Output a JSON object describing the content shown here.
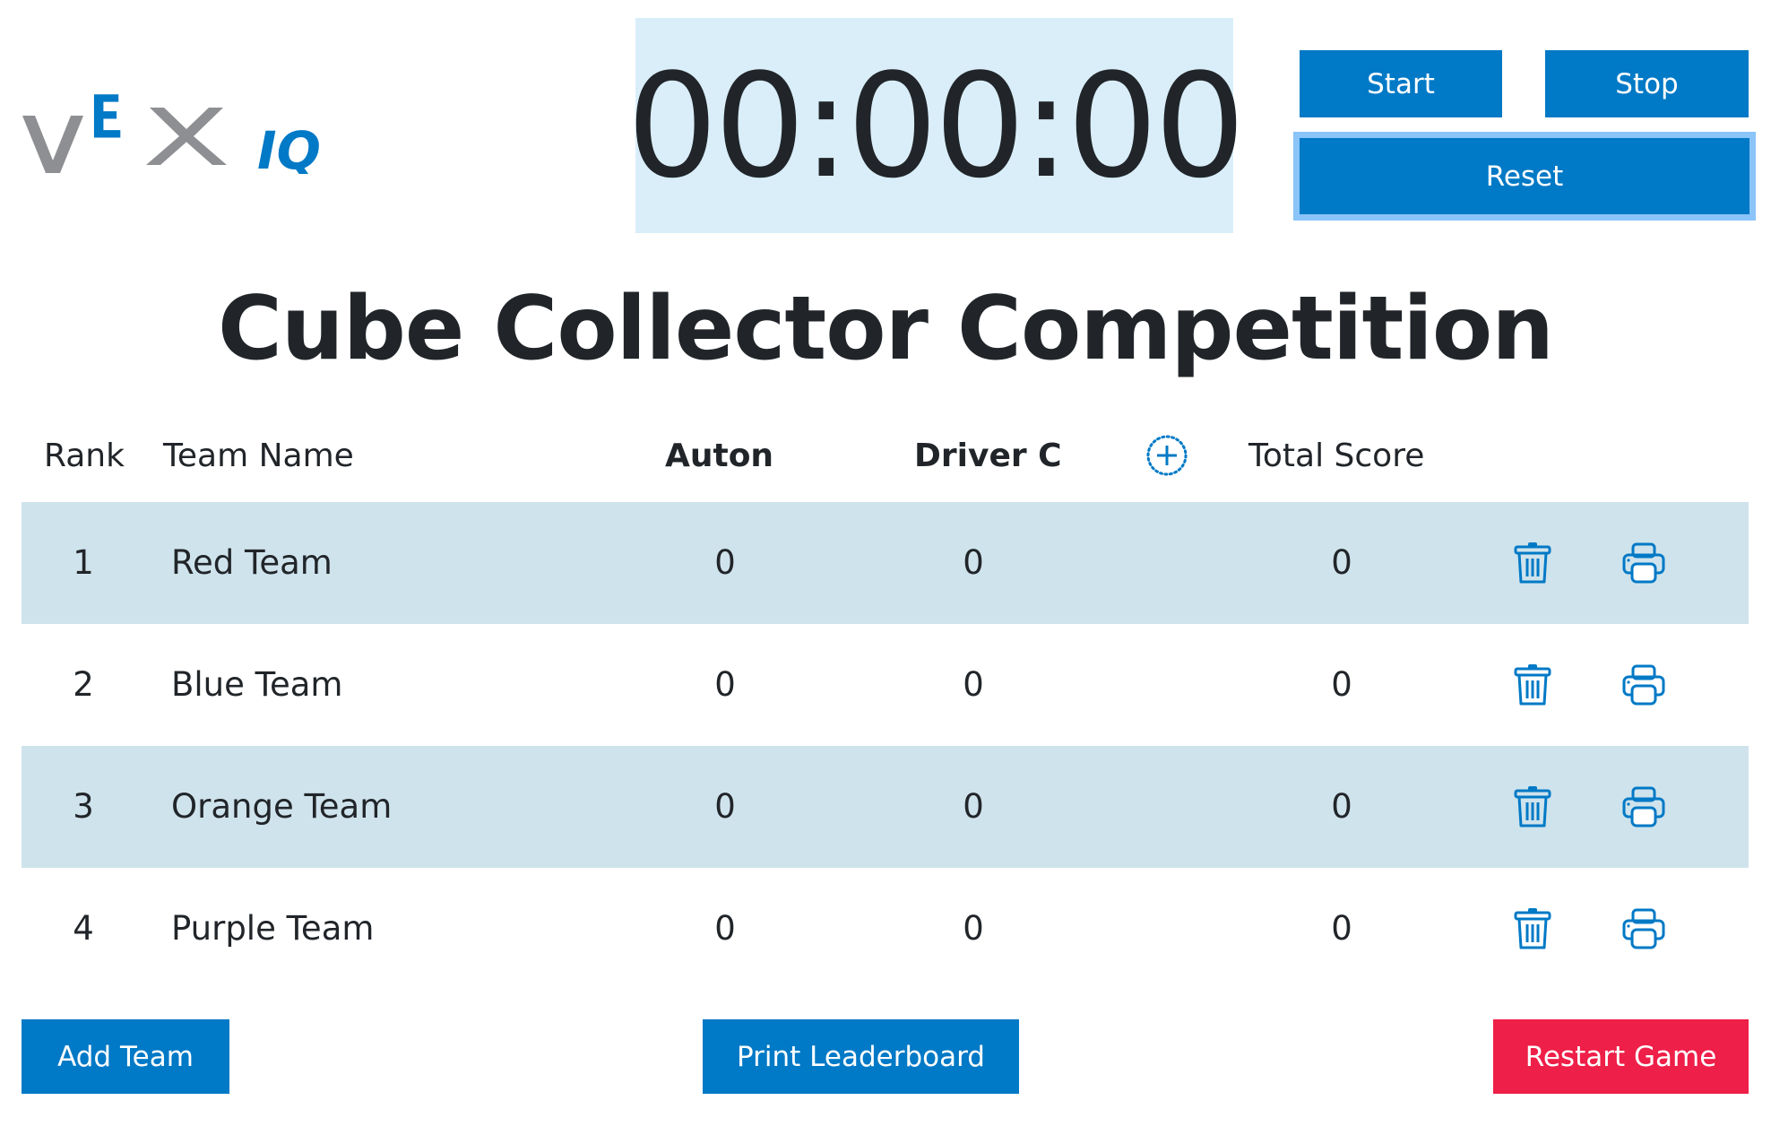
{
  "logo": {
    "text": "VEX IQ",
    "gray": "#8e8f92",
    "blue": "#0079c6"
  },
  "timer": {
    "value": "00:00:00"
  },
  "controls": {
    "start": "Start",
    "stop": "Stop",
    "reset": "Reset"
  },
  "title": "Cube Collector Competition",
  "table": {
    "headers": {
      "rank": "Rank",
      "team": "Team Name",
      "auton": "Auton",
      "driver": "Driver C",
      "add_column_icon": "plus-circle-dotted-icon",
      "total": "Total Score"
    },
    "rows": [
      {
        "rank": "1",
        "team": "Red Team",
        "auton": "0",
        "driver": "0",
        "total": "0"
      },
      {
        "rank": "2",
        "team": "Blue Team",
        "auton": "0",
        "driver": "0",
        "total": "0"
      },
      {
        "rank": "3",
        "team": "Orange Team",
        "auton": "0",
        "driver": "0",
        "total": "0"
      },
      {
        "rank": "4",
        "team": "Purple Team",
        "auton": "0",
        "driver": "0",
        "total": "0"
      }
    ],
    "row_icons": [
      "trash-icon",
      "printer-icon"
    ]
  },
  "footer": {
    "add_team": "Add Team",
    "print_leaderboard": "Print Leaderboard",
    "restart_game": "Restart Game"
  },
  "colors": {
    "primary": "#0079c6",
    "danger": "#ee1f48",
    "timer_bg": "#d9eef9",
    "row_shade": "#cfe3ec",
    "focus_ring": "#8ac4f8"
  }
}
